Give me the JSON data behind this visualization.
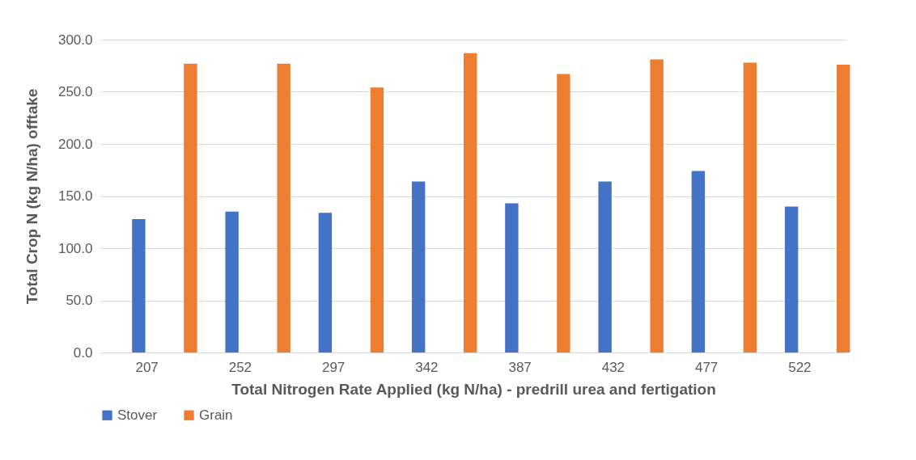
{
  "chart_data": {
    "type": "bar",
    "xlabel": "Total Nitrogen Rate Applied (kg N/ha) - predrill urea and fertigation",
    "ylabel": "Total Crop  N (kg N/ha) offtake",
    "categories": [
      "207",
      "252",
      "297",
      "342",
      "387",
      "432",
      "477",
      "522"
    ],
    "series": [
      {
        "name": "Stover",
        "color": "#4472c4",
        "values": [
          128,
          135,
          134,
          164,
          143,
          164,
          174,
          140
        ]
      },
      {
        "name": "Grain",
        "color": "#ed7d31",
        "values": [
          277,
          277,
          254,
          287,
          267,
          281,
          278,
          276
        ]
      }
    ],
    "ylim": [
      0,
      300
    ],
    "yticks": [
      {
        "value": 0,
        "label": "0.0"
      },
      {
        "value": 50,
        "label": "50.0"
      },
      {
        "value": 100,
        "label": "100.0"
      },
      {
        "value": 150,
        "label": "150.0"
      },
      {
        "value": 200,
        "label": "200.0"
      },
      {
        "value": 250,
        "label": "250.0"
      },
      {
        "value": 300,
        "label": "300.0"
      }
    ],
    "grid": "y",
    "legend": "bottom"
  }
}
